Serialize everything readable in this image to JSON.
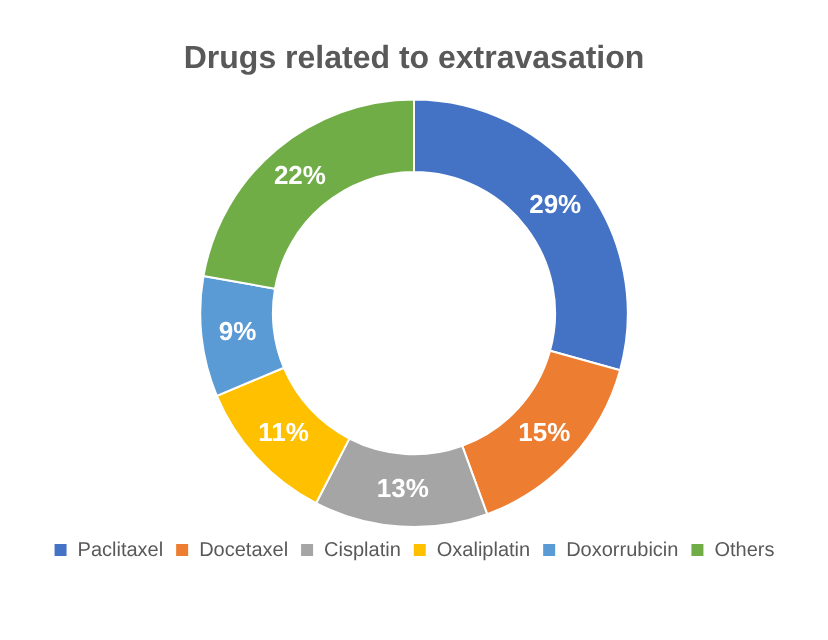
{
  "chart_data": {
    "type": "donut",
    "title": "Drugs related to extravasation",
    "categories": [
      "Paclitaxel",
      "Docetaxel",
      "Cisplatin",
      "Oxaliplatin",
      "Doxorrubicin",
      "Others"
    ],
    "values": [
      29,
      15,
      13,
      11,
      9,
      22
    ],
    "value_labels": [
      "29%",
      "15%",
      "13%",
      "11%",
      "9%",
      "22%"
    ],
    "colors": [
      "#4472c4",
      "#ed7d31",
      "#a5a5a5",
      "#ffc000",
      "#5b9bd5",
      "#70ad47"
    ],
    "legend": "bottom"
  }
}
